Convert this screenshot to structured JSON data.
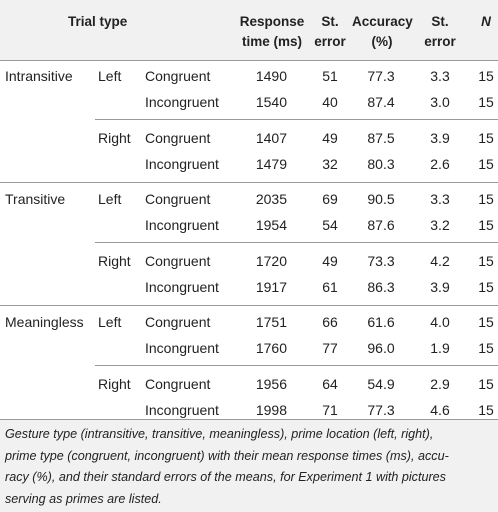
{
  "header": {
    "trial_type": "Trial type",
    "response_time": [
      "Response",
      "time (ms)"
    ],
    "st_error_1": [
      "St.",
      "error"
    ],
    "accuracy": [
      "Accuracy",
      "(%)"
    ],
    "st_error_2": [
      "St.",
      "error"
    ],
    "n": "N"
  },
  "table": {
    "groups": [
      {
        "label": "Intransitive",
        "sides": [
          {
            "label": "Left",
            "rows": [
              [
                "Congruent",
                "1490",
                "51",
                "77.3",
                "3.3",
                "15"
              ],
              [
                "Incongruent",
                "1540",
                "40",
                "87.4",
                "3.0",
                "15"
              ]
            ]
          },
          {
            "label": "Right",
            "rows": [
              [
                "Congruent",
                "1407",
                "49",
                "87.5",
                "3.9",
                "15"
              ],
              [
                "Incongruent",
                "1479",
                "32",
                "80.3",
                "2.6",
                "15"
              ]
            ]
          }
        ]
      },
      {
        "label": "Transitive",
        "sides": [
          {
            "label": "Left",
            "rows": [
              [
                "Congruent",
                "2035",
                "69",
                "90.5",
                "3.3",
                "15"
              ],
              [
                "Incongruent",
                "1954",
                "54",
                "87.6",
                "3.2",
                "15"
              ]
            ]
          },
          {
            "label": "Right",
            "rows": [
              [
                "Congruent",
                "1720",
                "49",
                "73.3",
                "4.2",
                "15"
              ],
              [
                "Incongruent",
                "1917",
                "61",
                "86.3",
                "3.9",
                "15"
              ]
            ]
          }
        ]
      },
      {
        "label": "Meaningless",
        "sides": [
          {
            "label": "Left",
            "rows": [
              [
                "Congruent",
                "1751",
                "66",
                "61.6",
                "4.0",
                "15"
              ],
              [
                "Incongruent",
                "1760",
                "77",
                "96.0",
                "1.9",
                "15"
              ]
            ]
          },
          {
            "label": "Right",
            "rows": [
              [
                "Congruent",
                "1956",
                "64",
                "54.9",
                "2.9",
                "15"
              ],
              [
                "Incongruent",
                "1998",
                "71",
                "77.3",
                "4.6",
                "15"
              ]
            ]
          }
        ]
      }
    ]
  },
  "caption": [
    "Gesture type (intransitive, transitive, meaningless), prime location (left, right),",
    "prime type (congruent, incongruent) with their mean response times (ms), accu-",
    "racy (%), and their standard errors of the means, for Experiment 1 with pictures",
    "serving as primes are listed."
  ]
}
